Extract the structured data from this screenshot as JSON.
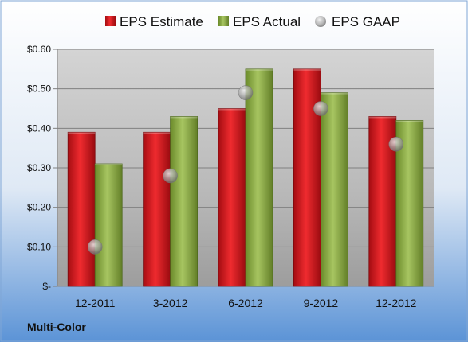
{
  "chart_data": {
    "type": "bar",
    "categories": [
      "12-2011",
      "3-2012",
      "6-2012",
      "9-2012",
      "12-2012"
    ],
    "series": [
      {
        "name": "EPS Estimate",
        "values": [
          0.39,
          0.39,
          0.45,
          0.55,
          0.43
        ],
        "color": "#e0141c"
      },
      {
        "name": "EPS Actual",
        "values": [
          0.31,
          0.43,
          0.55,
          0.49,
          0.42
        ],
        "color": "#8aaa3c"
      },
      {
        "name": "EPS GAAP",
        "values": [
          0.1,
          0.28,
          0.49,
          0.45,
          0.36
        ],
        "color": "#a0a0a0",
        "marker": "circle"
      }
    ],
    "yticks": [
      "$-",
      "$0.10",
      "$0.20",
      "$0.30",
      "$0.40",
      "$0.50",
      "$0.60"
    ],
    "ylim": [
      0,
      0.6
    ],
    "grid": true,
    "legend": "top",
    "company": "Multi-Color"
  }
}
